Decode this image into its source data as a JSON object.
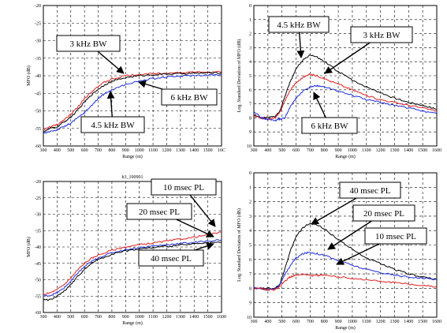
{
  "colors": {
    "black": "#000000",
    "red": "#e02020",
    "blue": "#1f2ee0",
    "grid": "#000000"
  },
  "chart_data": [
    {
      "type": "line",
      "panel": "top-left",
      "xlabel": "Range (m)",
      "ylabel": "MFO (dB)",
      "xlim": [
        300,
        1600
      ],
      "ylim": [
        -60,
        -20
      ],
      "xticks": [
        "300",
        "400",
        "500",
        "600",
        "700",
        "800",
        "900",
        "1000",
        "1100",
        "1200",
        "1300",
        "1400",
        "1500",
        "16C"
      ],
      "yticks": [
        "-20",
        "-25",
        "-30",
        "-35",
        "-40",
        "-45",
        "-50",
        "-55",
        "-60"
      ],
      "x": [
        300,
        350,
        400,
        450,
        500,
        550,
        600,
        650,
        700,
        750,
        800,
        900,
        1000,
        1100,
        1200,
        1300,
        1400,
        1500,
        1600
      ],
      "series": [
        {
          "color": "red",
          "values": [
            -55.5,
            -54.5,
            -54,
            -52.5,
            -51,
            -49,
            -46.5,
            -44.5,
            -43,
            -41.8,
            -41,
            -40,
            -39.6,
            -39.4,
            -39.2,
            -39.1,
            -39,
            -39,
            -38.9
          ]
        },
        {
          "color": "black",
          "values": [
            -56,
            -55,
            -54.6,
            -53.2,
            -51.8,
            -49.8,
            -47.5,
            -45.5,
            -43.8,
            -42.5,
            -41.6,
            -40.5,
            -40,
            -39.7,
            -39.5,
            -39.4,
            -39.3,
            -39.2,
            -39.1
          ]
        },
        {
          "color": "blue",
          "values": [
            -56.5,
            -55.8,
            -55.4,
            -54.5,
            -53.5,
            -52,
            -50.5,
            -48.5,
            -46.5,
            -45,
            -44,
            -42.5,
            -41.5,
            -40.8,
            -40.4,
            -40.1,
            -39.9,
            -39.8,
            -39.7
          ]
        }
      ],
      "annotations": [
        "3 kHz BW",
        "6 kHz BW",
        "4.5 kHz BW"
      ]
    },
    {
      "type": "line",
      "panel": "top-right",
      "xlabel": "Range (m)",
      "ylabel": "Log. Standard Deviation of MFO (dB)",
      "xlim": [
        300,
        1600
      ],
      "ylim": [
        0,
        10
      ],
      "xticks": [
        "300",
        "400",
        "500",
        "600",
        "700",
        "800",
        "900",
        "1000",
        "1100",
        "1200",
        "1300",
        "1400",
        "1500",
        "1600"
      ],
      "yticks": [
        "0",
        "1",
        "2",
        "3",
        "4",
        "5",
        "6",
        "7",
        "8",
        "9",
        "10"
      ],
      "x": [
        300,
        350,
        400,
        450,
        480,
        520,
        560,
        600,
        650,
        700,
        750,
        800,
        900,
        1000,
        1100,
        1200,
        1300,
        1400,
        1500,
        1600
      ],
      "series": [
        {
          "color": "black",
          "values": [
            2.2,
            2,
            2,
            2.1,
            2.4,
            3.5,
            4.6,
            5.5,
            6.1,
            6.5,
            6.3,
            6,
            5.3,
            4.7,
            4.2,
            3.8,
            3.4,
            3.1,
            2.9,
            2.6
          ]
        },
        {
          "color": "red",
          "values": [
            2.1,
            2,
            1.9,
            2,
            2.3,
            3.2,
            4,
            4.5,
            4.9,
            5.1,
            5,
            4.8,
            4.4,
            4,
            3.6,
            3.3,
            3.1,
            2.9,
            2.7,
            2.5
          ]
        },
        {
          "color": "blue",
          "values": [
            2.5,
            2,
            1.9,
            1.8,
            1.9,
            2,
            2.8,
            3.4,
            3.9,
            4.2,
            4.3,
            4.2,
            3.9,
            3.6,
            3.3,
            3.1,
            2.9,
            2.7,
            2.5,
            2.3
          ]
        }
      ],
      "annotations": [
        "4.5 kHz BW",
        "3 kHz BW",
        "6 kHz BW"
      ]
    },
    {
      "type": "line",
      "panel": "bottom-left",
      "title": "h3_100901",
      "xlabel": "Range (m)",
      "ylabel": "MFO (dB)",
      "xlim": [
        300,
        1600
      ],
      "ylim": [
        -60,
        -20
      ],
      "xticks": [
        "300",
        "400",
        "500",
        "600",
        "700",
        "800",
        "900",
        "1000",
        "1100",
        "1200",
        "1300",
        "1400",
        "1500",
        "1600"
      ],
      "yticks": [
        "-20",
        "-25",
        "-30",
        "-35",
        "-40",
        "-45",
        "-50",
        "-55",
        "-60"
      ],
      "x": [
        300,
        350,
        400,
        450,
        500,
        550,
        600,
        650,
        700,
        800,
        900,
        1000,
        1100,
        1200,
        1300,
        1400,
        1500,
        1600
      ],
      "series": [
        {
          "color": "red",
          "values": [
            -54.5,
            -54,
            -53,
            -51.5,
            -49.5,
            -47,
            -45,
            -43.5,
            -42.5,
            -41,
            -40,
            -39.3,
            -38.8,
            -38.2,
            -37.6,
            -37,
            -36.3,
            -35.5
          ]
        },
        {
          "color": "blue",
          "values": [
            -55,
            -54.8,
            -54,
            -52.5,
            -50.5,
            -48,
            -46,
            -44.5,
            -43.3,
            -41.8,
            -40.8,
            -40.2,
            -39.7,
            -39.3,
            -38.9,
            -38.6,
            -38.2,
            -37.8
          ]
        },
        {
          "color": "black",
          "values": [
            -56,
            -56.2,
            -55,
            -53.5,
            -51.5,
            -49,
            -46.8,
            -45,
            -43.8,
            -42.2,
            -41.2,
            -40.6,
            -40.2,
            -39.8,
            -39.4,
            -39.1,
            -38.8,
            -38.5
          ]
        }
      ],
      "annotations": [
        "10 msec PL",
        "20 msec PL",
        "40 msec PL"
      ]
    },
    {
      "type": "line",
      "panel": "bottom-right",
      "xlabel": "Range (m)",
      "ylabel": "Log. Standard Deviation of MFO (dB)",
      "xlim": [
        300,
        1600
      ],
      "ylim": [
        0,
        10
      ],
      "xticks": [
        "300",
        "400",
        "500",
        "600",
        "700",
        "800",
        "900",
        "1000",
        "1100",
        "1200",
        "1300",
        "1400",
        "1500",
        "1600"
      ],
      "yticks": [
        "0",
        "1",
        "2",
        "3",
        "4",
        "5",
        "6",
        "7",
        "8",
        "9",
        "10"
      ],
      "x": [
        300,
        350,
        400,
        450,
        480,
        520,
        560,
        600,
        650,
        700,
        750,
        800,
        900,
        1000,
        1100,
        1200,
        1300,
        1400,
        1500,
        1600
      ],
      "series": [
        {
          "color": "black",
          "values": [
            2,
            2,
            2,
            2,
            2.2,
            3.3,
            4.6,
            5.6,
            6.2,
            6.5,
            6.4,
            6.1,
            5.4,
            4.7,
            4.1,
            3.7,
            3.3,
            3,
            2.8,
            2.6
          ]
        },
        {
          "color": "blue",
          "values": [
            2,
            2,
            1.9,
            2,
            2.2,
            2.9,
            3.6,
            4.1,
            4.4,
            4.5,
            4.4,
            4.3,
            3.9,
            3.6,
            3.3,
            3.1,
            2.9,
            2.8,
            2.7,
            2.6
          ]
        },
        {
          "color": "red",
          "values": [
            2,
            2,
            1.9,
            1.9,
            2.1,
            2.5,
            2.8,
            2.9,
            3,
            2.9,
            2.9,
            2.9,
            2.8,
            2.7,
            2.6,
            2.5,
            2.4,
            2.3,
            2.2,
            2.1
          ]
        }
      ],
      "annotations": [
        "40 msec PL",
        "20 msec PL",
        "10 msec PL"
      ]
    }
  ]
}
